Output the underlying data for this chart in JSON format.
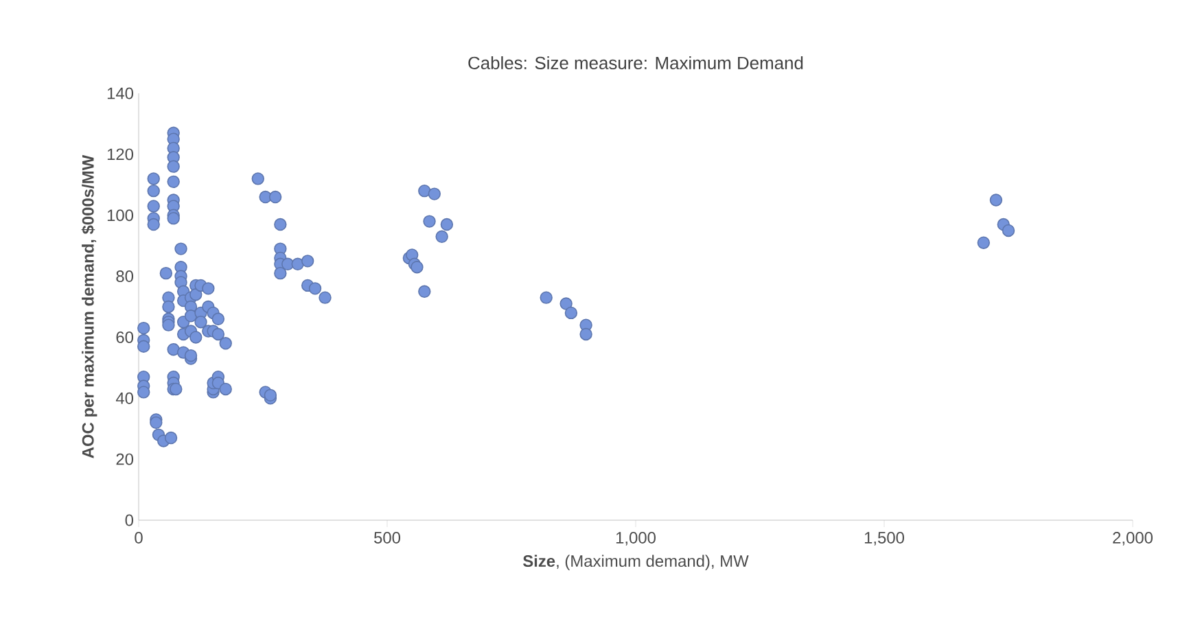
{
  "chart_data": {
    "type": "scatter",
    "title": "Cables: Size measure: Maximum Demand",
    "xlabel": "**Size**, (Maximum demand), MW",
    "ylabel": "**AOC per maximum demand, $000s/MW**",
    "xlim": [
      0,
      2000
    ],
    "ylim": [
      0,
      140
    ],
    "xticks": [
      0,
      500,
      {
        "value": 1000,
        "label": "1,000"
      },
      {
        "value": 1500,
        "label": "1,500"
      },
      {
        "value": 2000,
        "label": "2,000"
      }
    ],
    "yticks": [
      0,
      20,
      40,
      60,
      80,
      100,
      120,
      140
    ],
    "grid": false,
    "series": [
      {
        "color": "#7493da",
        "x": [
          10,
          10,
          10,
          10,
          10,
          10,
          30,
          30,
          30,
          30,
          30,
          35,
          35,
          40,
          50,
          55,
          60,
          60,
          60,
          60,
          60,
          65,
          70,
          70,
          70,
          70,
          70,
          70,
          70,
          70,
          70,
          70,
          70,
          70,
          70,
          70,
          75,
          85,
          85,
          85,
          85,
          90,
          90,
          90,
          90,
          90,
          105,
          105,
          105,
          105,
          105,
          105,
          115,
          115,
          115,
          125,
          125,
          125,
          140,
          140,
          140,
          150,
          150,
          150,
          150,
          150,
          160,
          160,
          160,
          160,
          175,
          175,
          240,
          255,
          255,
          265,
          265,
          275,
          285,
          285,
          285,
          285,
          285,
          300,
          320,
          340,
          340,
          355,
          375,
          544,
          550,
          555,
          560,
          575,
          575,
          595,
          585,
          610,
          620,
          820,
          860,
          870,
          900,
          900,
          1700,
          1725,
          1740,
          1750
        ],
        "values": [
          63,
          59,
          57,
          47,
          44,
          42,
          112,
          108,
          103,
          99,
          97,
          33,
          32,
          28,
          26,
          81,
          73,
          70,
          66,
          65,
          64,
          27,
          127,
          125,
          122,
          119,
          116,
          111,
          105,
          103,
          100,
          99,
          56,
          47,
          45,
          43,
          43,
          89,
          83,
          80,
          78,
          75,
          72,
          65,
          61,
          55,
          73,
          70,
          67,
          62,
          53,
          54,
          77,
          74,
          60,
          77,
          68,
          65,
          76,
          70,
          62,
          68,
          62,
          42,
          43,
          45,
          66,
          61,
          47,
          45,
          58,
          43,
          112,
          106,
          42,
          40,
          41,
          106,
          97,
          89,
          86,
          84,
          81,
          84,
          84,
          85,
          77,
          76,
          73,
          86,
          87,
          84,
          83,
          75,
          108,
          107,
          98,
          93,
          97,
          73,
          71,
          68,
          64,
          61,
          91,
          105,
          97,
          95
        ]
      }
    ]
  }
}
